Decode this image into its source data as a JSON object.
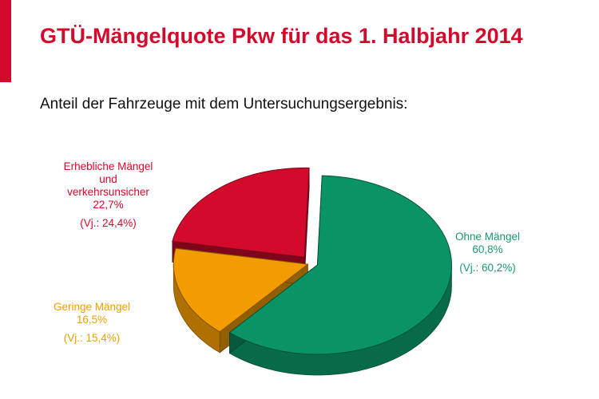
{
  "slide": {
    "title": "GTÜ-Mängelquote Pkw für das 1. Halbjahr 2014",
    "subtitle": "Anteil der Fahrzeuge mit dem Untersuchungsergebnis:",
    "accent_color": "#d40a2c"
  },
  "chart_data": {
    "type": "pie",
    "style": "3d-exploded",
    "slices": [
      {
        "name": "Ohne Mängel",
        "value": 60.8,
        "value_label": "60,8%",
        "previous_label": "(Vj.: 60,2%)",
        "color": "#0a9466"
      },
      {
        "name": "Geringe Mängel",
        "value": 16.5,
        "value_label": "16,5%",
        "previous_label": "(Vj.: 15,4%)",
        "color": "#f39c00"
      },
      {
        "name": "Erhebliche Mängel und verkehrsunsicher",
        "name_lines": [
          "Erhebliche Mängel",
          "und",
          "verkehrsunsicher"
        ],
        "value": 22.7,
        "value_label": "22,7%",
        "previous_label": "(Vj.: 24,4%)",
        "color": "#d40a2c"
      }
    ]
  }
}
